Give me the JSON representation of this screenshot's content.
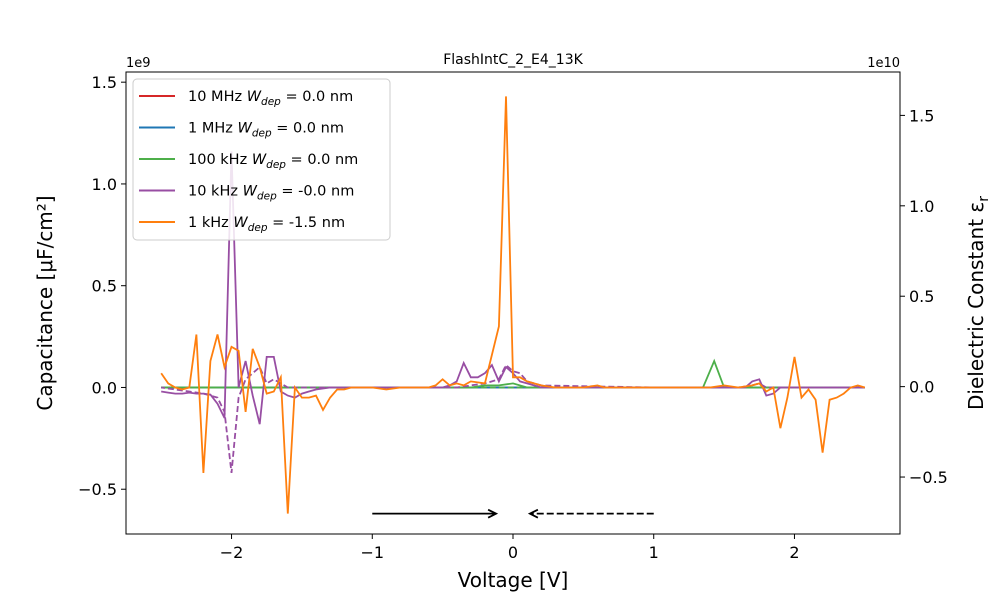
{
  "chart_data": {
    "type": "line",
    "title": "FlashIntC_2_E4_13K",
    "xlabel": "Voltage [V]",
    "ylabel_left": "Capacitance [μF/cm²]",
    "ylabel_right": "Dielectric Constant ε",
    "ylabel_right_sub": "r",
    "left_offset": "1e9",
    "right_offset": "1e10",
    "xlim": [
      -2.75,
      2.75
    ],
    "ylim_left": [
      -0.72,
      1.55
    ],
    "ylim_right": [
      -0.815,
      1.74
    ],
    "x_ticks": [
      -2,
      -1,
      0,
      1,
      2
    ],
    "x_tick_labels": [
      "−2",
      "−1",
      "0",
      "1",
      "2"
    ],
    "left_ticks": [
      -0.5,
      0.0,
      0.5,
      1.0,
      1.5
    ],
    "left_tick_labels": [
      "−0.5",
      "0.0",
      "0.5",
      "1.0",
      "1.5"
    ],
    "right_ticks": [
      -0.5,
      0.0,
      0.5,
      1.0,
      1.5
    ],
    "right_tick_labels": [
      "−0.5",
      "0.0",
      "0.5",
      "1.0",
      "1.5"
    ],
    "grid": false,
    "legend_position": "top-left",
    "sweep_arrows": [
      {
        "style": "solid",
        "from": -1.0,
        "to": -0.12,
        "y": -0.62
      },
      {
        "style": "dashed",
        "from": 1.0,
        "to": 0.12,
        "y": -0.62
      }
    ],
    "series": [
      {
        "name": "10 MHz  W_dep = 0.0 nm",
        "legend_prefix": "10 MHz  ",
        "legend_suffix": " = 0.0 nm",
        "color": "#d62728",
        "x": [
          -2.5,
          2.5
        ],
        "y": [
          0.0,
          0.0
        ],
        "x_dashed": [
          2.5,
          -2.5
        ],
        "y_dashed": [
          0.0,
          0.0
        ]
      },
      {
        "name": "1 MHz   W_dep = 0.0 nm",
        "legend_prefix": "1 MHz   ",
        "legend_suffix": " = 0.0 nm",
        "color": "#1f77b4",
        "x": [
          -2.5,
          2.5
        ],
        "y": [
          0.0,
          0.0
        ],
        "x_dashed": [
          2.5,
          -2.5
        ],
        "y_dashed": [
          0.0,
          0.0
        ]
      },
      {
        "name": "100 kHz W_dep = 0.0 nm",
        "legend_prefix": "100 kHz ",
        "legend_suffix": " = 0.0 nm",
        "color": "#4daf4a",
        "x": [
          -2.5,
          -0.3,
          -0.2,
          -0.1,
          0.0,
          0.1,
          0.2,
          1.35,
          1.43,
          1.5,
          1.6,
          2.5
        ],
        "y": [
          0.0,
          0.0,
          0.01,
          0.01,
          0.02,
          0.0,
          0.0,
          0.0,
          0.13,
          0.0,
          0.0,
          0.0
        ],
        "x_dashed": [
          2.5,
          -2.5
        ],
        "y_dashed": [
          0.0,
          0.0
        ]
      },
      {
        "name": "10 kHz  W_dep = -0.0 nm",
        "legend_prefix": "10 kHz  ",
        "legend_suffix": " = -0.0 nm",
        "color": "#984ea3",
        "x": [
          -2.5,
          -2.45,
          -2.4,
          -2.35,
          -2.3,
          -2.25,
          -2.2,
          -2.15,
          -2.1,
          -2.05,
          -2.0,
          -1.95,
          -1.9,
          -1.85,
          -1.8,
          -1.75,
          -1.7,
          -1.65,
          -1.6,
          -1.55,
          -1.5,
          -1.45,
          -1.4,
          -1.35,
          -1.3,
          -1.2,
          -1.0,
          -0.8,
          -0.6,
          -0.5,
          -0.45,
          -0.4,
          -0.35,
          -0.3,
          -0.25,
          -0.2,
          -0.15,
          -0.1,
          -0.05,
          0.0,
          0.05,
          0.1,
          0.15,
          0.2,
          0.3,
          0.5,
          1.0,
          1.5,
          1.6,
          1.65,
          1.7,
          1.75,
          1.8,
          1.85,
          1.9,
          2.0,
          2.2,
          2.5
        ],
        "y": [
          -0.02,
          -0.025,
          -0.03,
          -0.03,
          -0.025,
          -0.03,
          -0.03,
          -0.035,
          -0.08,
          -0.15,
          1.16,
          0.0,
          0.13,
          -0.04,
          -0.18,
          0.15,
          0.15,
          -0.02,
          -0.04,
          -0.05,
          -0.03,
          -0.02,
          -0.01,
          -0.005,
          0.0,
          0.0,
          0.0,
          0.0,
          0.0,
          0.0,
          0.01,
          0.03,
          0.12,
          0.05,
          0.05,
          0.07,
          0.11,
          0.03,
          0.1,
          0.07,
          0.03,
          0.02,
          0.01,
          0.0,
          0.0,
          0.0,
          0.0,
          0.0,
          0.0,
          0.0,
          0.03,
          0.04,
          -0.04,
          -0.03,
          0.0,
          0.0,
          0.0,
          0.0
        ],
        "x_dashed": [
          2.5,
          2.0,
          1.8,
          1.75,
          1.7,
          1.6,
          1.0,
          0.2,
          0.1,
          0.05,
          0.0,
          -0.05,
          -0.1,
          -0.15,
          -0.2,
          -0.3,
          -0.4,
          -0.5,
          -1.0,
          -1.5,
          -1.6,
          -1.7,
          -1.75,
          -1.8,
          -1.85,
          -1.9,
          -1.95,
          -2.0,
          -2.05,
          -2.1,
          -2.2,
          -2.3,
          -2.4,
          -2.5
        ],
        "y_dashed": [
          0.0,
          0.0,
          0.0,
          0.02,
          0.01,
          0.0,
          0.0,
          0.01,
          0.03,
          0.07,
          0.08,
          0.11,
          0.04,
          0.03,
          0.02,
          0.01,
          0.0,
          0.0,
          0.0,
          0.0,
          0.0,
          0.04,
          0.02,
          0.1,
          0.07,
          0.04,
          -0.05,
          -0.42,
          -0.12,
          -0.05,
          -0.03,
          -0.02,
          -0.01,
          0.0
        ]
      },
      {
        "name": "1 kHz   W_dep = -1.5 nm",
        "legend_prefix": "1 kHz   ",
        "legend_suffix": " = -1.5 nm",
        "color": "#ff7f0e",
        "x": [
          -2.5,
          -2.45,
          -2.4,
          -2.35,
          -2.3,
          -2.25,
          -2.2,
          -2.15,
          -2.1,
          -2.05,
          -2.0,
          -1.95,
          -1.9,
          -1.85,
          -1.8,
          -1.75,
          -1.7,
          -1.65,
          -1.6,
          -1.55,
          -1.5,
          -1.45,
          -1.4,
          -1.35,
          -1.3,
          -1.25,
          -1.2,
          -1.15,
          -1.1,
          -1.0,
          -0.9,
          -0.8,
          -0.7,
          -0.6,
          -0.55,
          -0.5,
          -0.45,
          -0.4,
          -0.35,
          -0.3,
          -0.2,
          -0.1,
          -0.05,
          0.0,
          0.05,
          0.1,
          0.15,
          0.2,
          0.3,
          0.4,
          0.5,
          0.6,
          0.65,
          0.7,
          0.8,
          1.0,
          1.2,
          1.4,
          1.5,
          1.6,
          1.7,
          1.75,
          1.8,
          1.85,
          1.9,
          1.95,
          2.0,
          2.05,
          2.1,
          2.15,
          2.2,
          2.25,
          2.3,
          2.35,
          2.4,
          2.45,
          2.5
        ],
        "y": [
          0.07,
          0.02,
          0.0,
          -0.01,
          0.0,
          0.26,
          -0.42,
          0.13,
          0.26,
          0.1,
          0.2,
          0.18,
          -0.12,
          0.19,
          0.1,
          -0.03,
          -0.02,
          0.05,
          -0.62,
          0.0,
          -0.05,
          -0.05,
          -0.04,
          -0.11,
          -0.05,
          -0.01,
          -0.01,
          0.0,
          0.0,
          0.0,
          -0.01,
          0.0,
          0.0,
          0.0,
          0.01,
          0.04,
          0.01,
          0.02,
          0.01,
          0.03,
          0.02,
          0.3,
          1.43,
          0.05,
          0.05,
          0.03,
          0.02,
          0.01,
          0.0,
          0.0,
          0.0,
          0.01,
          0.0,
          0.0,
          0.0,
          0.0,
          0.0,
          0.0,
          0.01,
          0.0,
          0.01,
          0.02,
          -0.02,
          0.0,
          -0.2,
          -0.05,
          0.15,
          -0.05,
          -0.01,
          -0.06,
          -0.32,
          -0.06,
          -0.05,
          -0.03,
          0.0,
          0.01,
          0.0
        ],
        "x_dashed": [],
        "y_dashed": []
      }
    ]
  }
}
